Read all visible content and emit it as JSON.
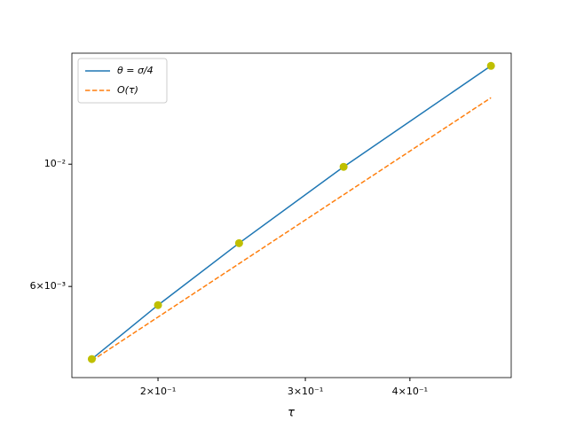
{
  "chart_data": {
    "type": "line",
    "xlabel": "τ",
    "x": [
      0.1667,
      0.2,
      0.25,
      0.3333,
      0.5
    ],
    "series": [
      {
        "name": "θ = σ/4",
        "color": "#1f77b4",
        "linestyle": "solid",
        "marker_color": "#bfbf00",
        "values": [
          0.00443,
          0.00555,
          0.00719,
          0.00989,
          0.01508
        ]
      },
      {
        "name": "O(τ)",
        "color": "#ff7f0e",
        "linestyle": "dashed",
        "values": [
          0.0044,
          0.00528,
          0.0066,
          0.0088,
          0.0132
        ]
      }
    ],
    "xscale": "log",
    "yscale": "log",
    "xlim": [
      0.1578,
      0.5286
    ],
    "ylim": [
      0.0041,
      0.0159
    ],
    "xticks": [
      {
        "value": 0.2,
        "label": "2×10⁻¹"
      },
      {
        "value": 0.3,
        "label": "3×10⁻¹"
      },
      {
        "value": 0.4,
        "label": "4×10⁻¹"
      }
    ],
    "yticks": [
      {
        "value": 0.006,
        "label": "6×10⁻³"
      },
      {
        "value": 0.01,
        "label": "10⁻²"
      }
    ],
    "legend": "upper left"
  }
}
